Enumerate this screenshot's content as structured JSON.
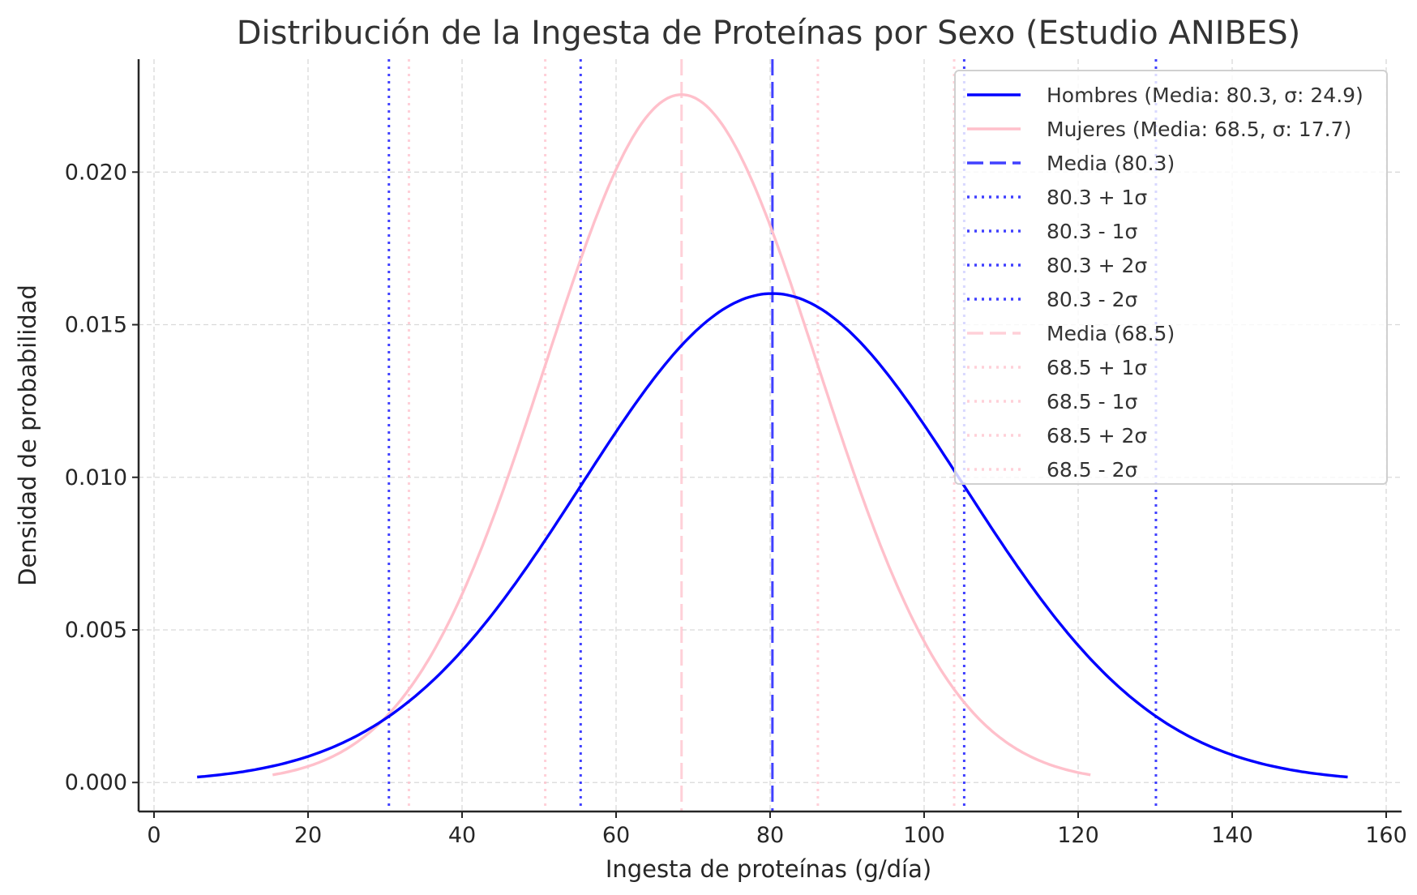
{
  "chart_data": {
    "type": "line",
    "title": "Distribución de la Ingesta de Proteínas por Sexo (Estudio ANIBES)",
    "xlabel": "Ingesta de proteínas (g/día)",
    "ylabel": "Densidad de probabilidad",
    "xlim": [
      -2,
      162
    ],
    "ylim": [
      -0.00095,
      0.0237
    ],
    "xticks": [
      "0",
      "20",
      "40",
      "60",
      "80",
      "100",
      "120",
      "140",
      "160"
    ],
    "yticks": [
      "0.000",
      "0.005",
      "0.010",
      "0.015",
      "0.020"
    ],
    "grid": true,
    "legend_position": "top-right",
    "series": [
      {
        "name": "Hombres (Media: 80.3, σ: 24.9)",
        "mean": 80.3,
        "sd": 24.9,
        "x_range": [
          5.6,
          155.0
        ],
        "color": "#0000ff",
        "style": "solid"
      },
      {
        "name": "Mujeres (Media: 68.5, σ: 17.7)",
        "mean": 68.5,
        "sd": 17.7,
        "x_range": [
          15.4,
          121.6
        ],
        "color": "#ffc0cb",
        "style": "solid"
      }
    ],
    "vlines": [
      {
        "name": "Media (80.3)",
        "x": 80.3,
        "color": "#0000ff",
        "style": "dashed"
      },
      {
        "name": "80.3 + 1σ",
        "x": 105.2,
        "color": "#0000ff",
        "style": "dotted"
      },
      {
        "name": "80.3 - 1σ",
        "x": 55.4,
        "color": "#0000ff",
        "style": "dotted"
      },
      {
        "name": "80.3 + 2σ",
        "x": 130.1,
        "color": "#0000ff",
        "style": "dotted"
      },
      {
        "name": "80.3 - 2σ",
        "x": 30.5,
        "color": "#0000ff",
        "style": "dotted"
      },
      {
        "name": "Media (68.5)",
        "x": 68.5,
        "color": "#ffc0cb",
        "style": "dashed"
      },
      {
        "name": "68.5 + 1σ",
        "x": 86.2,
        "color": "#ffc0cb",
        "style": "dotted"
      },
      {
        "name": "68.5 - 1σ",
        "x": 50.8,
        "color": "#ffc0cb",
        "style": "dotted"
      },
      {
        "name": "68.5 + 2σ",
        "x": 103.9,
        "color": "#ffc0cb",
        "style": "dotted"
      },
      {
        "name": "68.5 - 2σ",
        "x": 33.1,
        "color": "#ffc0cb",
        "style": "dotted"
      }
    ]
  }
}
